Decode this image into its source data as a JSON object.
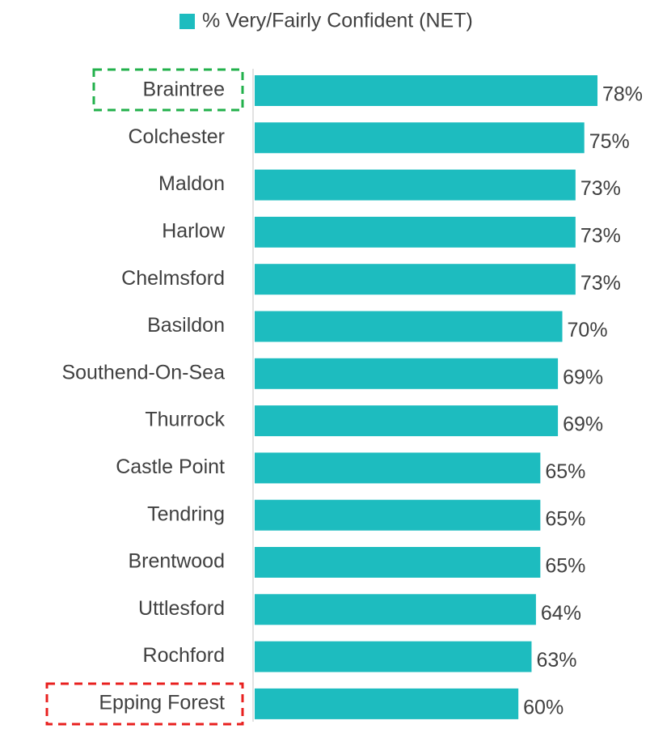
{
  "chart_data": {
    "type": "bar",
    "orientation": "horizontal",
    "categories": [
      "Braintree",
      "Colchester",
      "Maldon",
      "Harlow",
      "Chelmsford",
      "Basildon",
      "Southend-On-Sea",
      "Thurrock",
      "Castle Point",
      "Tendring",
      "Brentwood",
      "Uttlesford",
      "Rochford",
      "Epping Forest"
    ],
    "series": [
      {
        "name": "% Very/Fairly Confident (NET)",
        "color": "#1dbcbf",
        "values": [
          78,
          75,
          73,
          73,
          73,
          70,
          69,
          69,
          65,
          65,
          65,
          64,
          63,
          60
        ],
        "value_labels": [
          "78%",
          "75%",
          "73%",
          "73%",
          "73%",
          "70%",
          "69%",
          "69%",
          "65%",
          "65%",
          "65%",
          "64%",
          "63%",
          "60%"
        ]
      }
    ]
  }
}
